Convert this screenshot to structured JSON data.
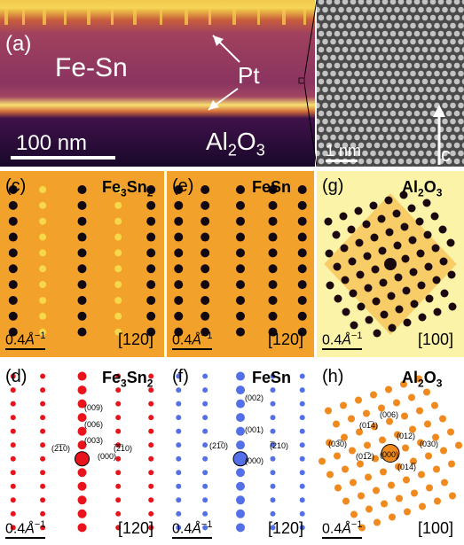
{
  "panel_a": {
    "label": "(a)",
    "material": "Fe-Sn",
    "pt": "Pt",
    "substrate": "Al",
    "substrate_sub": "2",
    "substrate_end": "O",
    "substrate_sub2": "3",
    "scalebar": "100 nm"
  },
  "panel_b": {
    "scalebar": "1 nm",
    "axis": "c"
  },
  "diffraction": [
    {
      "label": "(c)",
      "title_base": "Fe",
      "title_s1": "3",
      "title_mid": "Sn",
      "title_s2": "2",
      "scale": "0.4",
      "scale_unit": "Å",
      "scale_exp": "−1",
      "zone": "[120]"
    },
    {
      "label": "(e)",
      "title_base": "FeSn",
      "title_s1": "",
      "title_mid": "",
      "title_s2": "",
      "scale": "0.4",
      "scale_unit": "Å",
      "scale_exp": "−1",
      "zone": "[120]"
    },
    {
      "label": "(g)",
      "title_base": "Al",
      "title_s1": "2",
      "title_mid": "O",
      "title_s2": "3",
      "scale": "0.4",
      "scale_unit": "Å",
      "scale_exp": "−1",
      "zone": "[100]"
    }
  ],
  "simulation": [
    {
      "label": "(d)",
      "title_base": "Fe",
      "title_s1": "3",
      "title_mid": "Sn",
      "title_s2": "2",
      "scale": "0.4",
      "scale_unit": "Å",
      "scale_exp": "−1",
      "zone": "[120]",
      "spots": [
        "(009)",
        "(006)",
        "(003)",
        "(2̅1̅0)",
        "(000)",
        "(̅2̅10)"
      ]
    },
    {
      "label": "(f)",
      "title_base": "FeSn",
      "title_s1": "",
      "title_mid": "",
      "title_s2": "",
      "scale": "0.4",
      "scale_unit": "Å",
      "scale_exp": "−1",
      "zone": "[120]",
      "spots": [
        "(002)",
        "(001)",
        "(21̅0)",
        "(000)",
        "(̅210)"
      ]
    },
    {
      "label": "(h)",
      "title_base": "Al",
      "title_s1": "2",
      "title_mid": "O",
      "title_s2": "3",
      "scale": "0.4",
      "scale_unit": "Å",
      "scale_exp": "−1",
      "zone": "[100]",
      "spots": [
        "(006)",
        "(01̅4)",
        "(012)",
        "(03̅0)",
        "(000)",
        "(030)",
        "(01̅2)",
        "(014̅)"
      ]
    }
  ],
  "colors": {
    "sim_d": "#e8141c",
    "sim_f": "#5470e8",
    "sim_h": "#f08a1e",
    "stem_bg": "#7a2a5a"
  }
}
